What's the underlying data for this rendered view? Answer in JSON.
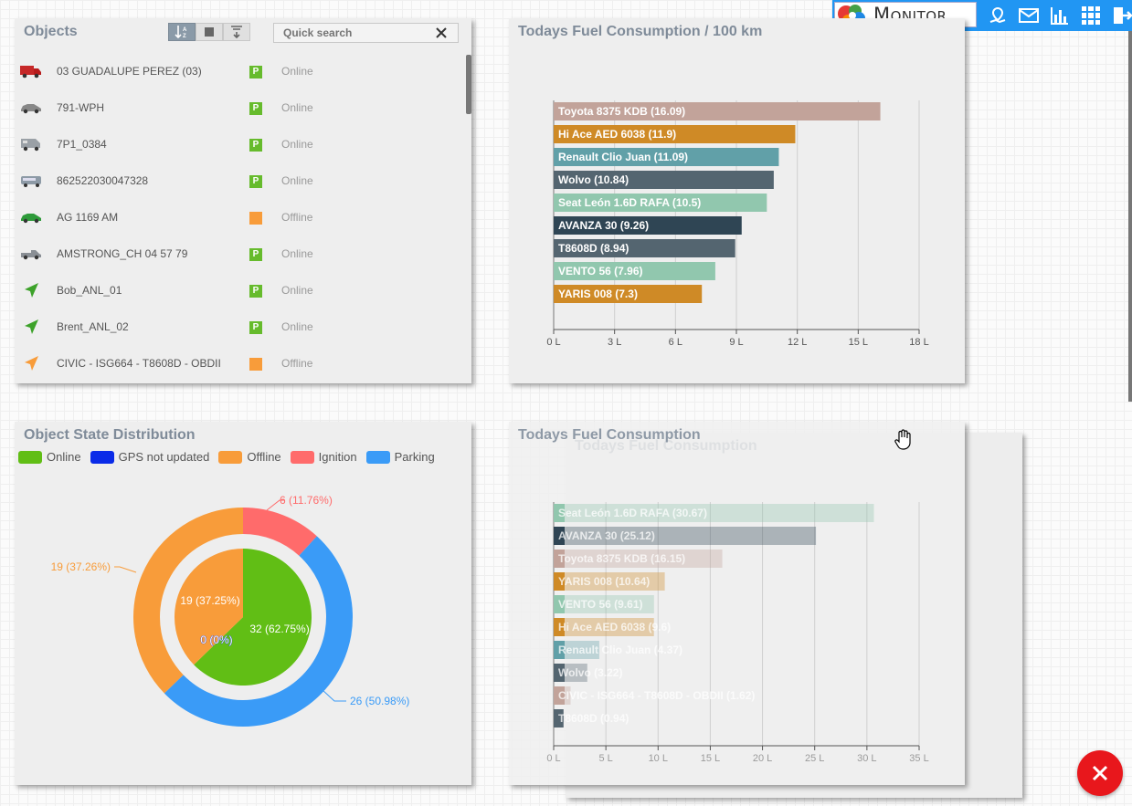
{
  "header": {
    "logo_text": "Monitor",
    "icons": [
      "map-pin-icon",
      "mail-icon",
      "bar-chart-icon",
      "grid-icon",
      "logout-icon"
    ]
  },
  "objects_panel": {
    "title": "Objects",
    "search_placeholder": "Quick search",
    "toolbar": [
      "sort-icon",
      "stop-icon",
      "filter-icon"
    ],
    "rows": [
      {
        "name": "03 GUADALUPE PEREZ (03)",
        "icon": "truck-red-icon",
        "badge": "P",
        "status": "Online"
      },
      {
        "name": "791-WPH",
        "icon": "car-icon",
        "badge": "P",
        "status": "Online"
      },
      {
        "name": "7P1_0384",
        "icon": "van-icon",
        "badge": "P",
        "status": "Online"
      },
      {
        "name": "862522030047328",
        "icon": "bus-icon",
        "badge": "P",
        "status": "Online"
      },
      {
        "name": "AG 1169 AM",
        "icon": "car-green-icon",
        "badge": "",
        "status": "Offline"
      },
      {
        "name": "AMSTRONG_CH 04 57 79",
        "icon": "pickup-icon",
        "badge": "P",
        "status": "Online"
      },
      {
        "name": "Bob_ANL_01",
        "icon": "arrow-green-icon",
        "badge": "P",
        "status": "Online"
      },
      {
        "name": "Brent_ANL_02",
        "icon": "arrow-green-icon",
        "badge": "P",
        "status": "Online"
      },
      {
        "name": "CIVIC - ISG664 - T8608D - OBDII",
        "icon": "arrow-orange-icon",
        "badge": "",
        "status": "Offline"
      }
    ]
  },
  "fuel100": {
    "title": "Todays Fuel Consumption / 100 km",
    "chart_data": {
      "type": "bar",
      "orientation": "horizontal",
      "categories": [
        "Toyota 8375 KDB (16.09)",
        "Hi Ace AED 6038 (11.9)",
        "Renault Clio Juan (11.09)",
        "Wolvo (10.84)",
        "Seat León 1.6D RAFA (10.5)",
        "AVANZA 30 (9.26)",
        "T8608D (8.94)",
        "VENTO 56 (7.96)",
        "YARIS 008 (7.3)"
      ],
      "values": [
        16.09,
        11.9,
        11.09,
        10.84,
        10.5,
        9.26,
        8.94,
        7.96,
        7.3
      ],
      "colors": [
        "#c2a39a",
        "#cf8a26",
        "#61a0a8",
        "#546570",
        "#91c7ae",
        "#2f4554",
        "#546570",
        "#91c7ae",
        "#cf8a26"
      ],
      "xlim": [
        0,
        18
      ],
      "ticks": [
        "0 L",
        "3 L",
        "6 L",
        "9 L",
        "12 L",
        "15 L",
        "18 L"
      ]
    }
  },
  "state_panel": {
    "title": "Object State Distribution",
    "legend": [
      {
        "label": "Online",
        "color": "#61be15"
      },
      {
        "label": "GPS not updated",
        "color": "#0a2be8"
      },
      {
        "label": "Offline",
        "color": "#f89c3a"
      },
      {
        "label": "Ignition",
        "color": "#ff6b6b"
      },
      {
        "label": "Parking",
        "color": "#3a9bf7"
      }
    ],
    "chart_data": {
      "type": "pie",
      "inner": [
        {
          "label": "32 (62.75%)",
          "value": 32,
          "color": "#61be15"
        },
        {
          "label": "19 (37.25%)",
          "value": 19,
          "color": "#f89c3a"
        },
        {
          "label": "0 (0%)",
          "value": 0,
          "color": "#0a2be8"
        }
      ],
      "outer": [
        {
          "label": "6 (11.76%)",
          "value": 6,
          "color": "#ff6b6b"
        },
        {
          "label": "26 (50.98%)",
          "value": 26,
          "color": "#3a9bf7"
        },
        {
          "label": "19 (37.26%)",
          "value": 19,
          "color": "#f89c3a"
        }
      ]
    }
  },
  "fuel_total": {
    "title": "Todays Fuel Consumption",
    "chart_data": {
      "type": "bar",
      "orientation": "horizontal",
      "categories": [
        "Seat León 1.6D RAFA (30.67)",
        "AVANZA 30 (25.12)",
        "Toyota 8375 KDB (16.15)",
        "YARIS 008 (10.64)",
        "VENTO 56 (9.61)",
        "Hi Ace AED 6038 (9.6)",
        "Renault Clio Juan (4.37)",
        "Wolvo (3.22)",
        "CIVIC - ISG664 - T8608D - OBDII (1.62)",
        "T8608D (0.94)"
      ],
      "values": [
        30.67,
        25.12,
        16.15,
        10.64,
        9.61,
        9.6,
        4.37,
        3.22,
        1.62,
        0.94
      ],
      "colors": [
        "#91c7ae",
        "#2f4554",
        "#c2a39a",
        "#cf8a26",
        "#91c7ae",
        "#cf8a26",
        "#61a0a8",
        "#546570",
        "#c2a39a",
        "#546570"
      ],
      "xlim": [
        0,
        35
      ],
      "ticks": [
        "0 L",
        "5 L",
        "10 L",
        "15 L",
        "20 L",
        "25 L",
        "30 L",
        "35 L"
      ]
    }
  }
}
